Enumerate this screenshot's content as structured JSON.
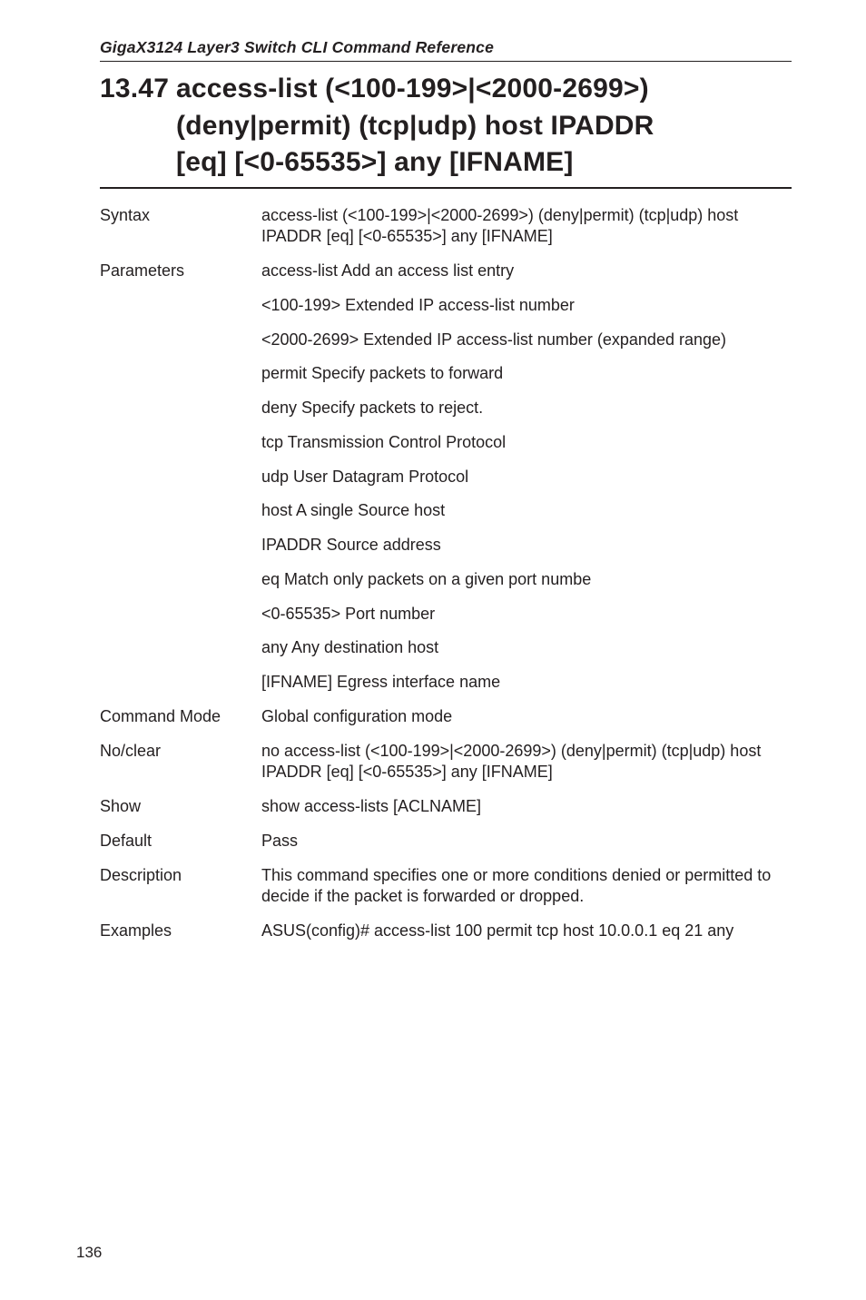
{
  "running_head": "GigaX3124 Layer3 Switch CLI Command Reference",
  "section_number": "13.47",
  "title_line1": "access-list (<100-199>|<2000-2699>)",
  "title_line2": "(deny|permit) (tcp|udp) host IPADDR",
  "title_line3": "[eq] [<0-65535>] any [IFNAME]",
  "rows": {
    "syntax": {
      "label": "Syntax",
      "value": "access-list (<100-199>|<2000-2699>) (deny|permit) (tcp|udp) host IPADDR [eq] [<0-65535>] any [IFNAME]"
    },
    "parameters": {
      "label": "Parameters",
      "items": [
        "access-list   Add an access list entry",
        "<100-199>  Extended IP access-list number",
        "<2000-2699>  Extended IP access-list number (expanded range)",
        "permit  Specify packets to forward",
        "deny   Specify packets to reject.",
        "tcp   Transmission Control Protocol",
        "udp   User Datagram Protocol",
        "host      A single Source host",
        "IPADDR    Source address",
        "eq     Match only packets on a given port numbe",
        "<0-65535>   Port number",
        "any      Any destination host",
        "[IFNAME]    Egress interface name"
      ]
    },
    "command_mode": {
      "label": "Command Mode",
      "value": "Global configuration mode"
    },
    "no_clear": {
      "label": "No/clear",
      "value": "no access-list (<100-199>|<2000-2699>) (deny|permit) (tcp|udp) host IPADDR [eq] [<0-65535>] any [IFNAME]"
    },
    "show": {
      "label": "Show",
      "value": "show access-lists [ACLNAME]"
    },
    "default": {
      "label": "Default",
      "value": "Pass"
    },
    "description": {
      "label": "Description",
      "value": "This command specifies one or more conditions denied or permitted to decide if the packet is forwarded or dropped."
    },
    "examples": {
      "label": "Examples",
      "value": "ASUS(config)# access-list 100 permit tcp host 10.0.0.1 eq 21 any"
    }
  },
  "page_number": "136"
}
